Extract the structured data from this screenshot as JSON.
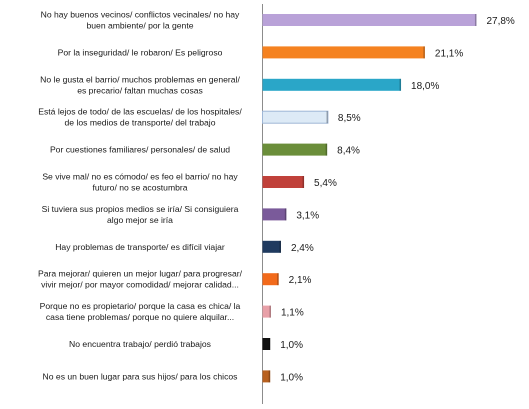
{
  "chart_data": {
    "type": "bar",
    "orientation": "horizontal",
    "unit": "%",
    "decimal_separator": ",",
    "xlim": [
      0,
      28
    ],
    "grid": false,
    "legend": "none",
    "categories": [
      [
        "No hay buenos vecinos/ conflictos vecinales/ no hay",
        "buen ambiente/ por la gente"
      ],
      [
        "Por la inseguridad/ le robaron/ Es peligroso"
      ],
      [
        "No le gusta el barrio/ muchos problemas en general/",
        "es precario/ faltan muchas cosas"
      ],
      [
        "Está lejos de todo/ de las escuelas/ de los hospitales/",
        "de los medios de transporte/ del trabajo"
      ],
      [
        "Por cuestiones familiares/ personales/ de salud"
      ],
      [
        "Se vive mal/ no es cómodo/ es feo el barrio/ no hay",
        "futuro/ no se acostumbra"
      ],
      [
        "Si tuviera sus propios medios se iría/ Si consiguiera",
        "algo mejor se iría"
      ],
      [
        "Hay problemas de transporte/ es difícil viajar"
      ],
      [
        "Para mejorar/ quieren un mejor lugar/ para progresar/",
        "vivir mejor/ por mayor comodidad/ mejorar calidad..."
      ],
      [
        "Porque no es propietario/ porque la casa es chica/ la",
        "casa tiene problemas/ porque no quiere alquilar..."
      ],
      [
        "No encuentra trabajo/ perdió trabajos"
      ],
      [
        "No es un buen lugar para sus hijos/ para los chicos"
      ]
    ],
    "values": [
      27.8,
      21.1,
      18.0,
      8.5,
      8.4,
      5.4,
      3.1,
      2.4,
      2.1,
      1.1,
      1.0,
      1.0
    ],
    "value_labels": [
      "27,8%",
      "21,1%",
      "18,0%",
      "8,5%",
      "8,4%",
      "5,4%",
      "3,1%",
      "2,4%",
      "2,1%",
      "1,1%",
      "1,0%",
      "1,0%"
    ],
    "colors": [
      "#b9a2d8",
      "#f58220",
      "#2aa6c8",
      "#ddeaf6",
      "#6b8e3a",
      "#c0413a",
      "#7a5a9a",
      "#1f3a5f",
      "#f26a1b",
      "#e8a0a8",
      "#111111",
      "#b8601e"
    ]
  }
}
